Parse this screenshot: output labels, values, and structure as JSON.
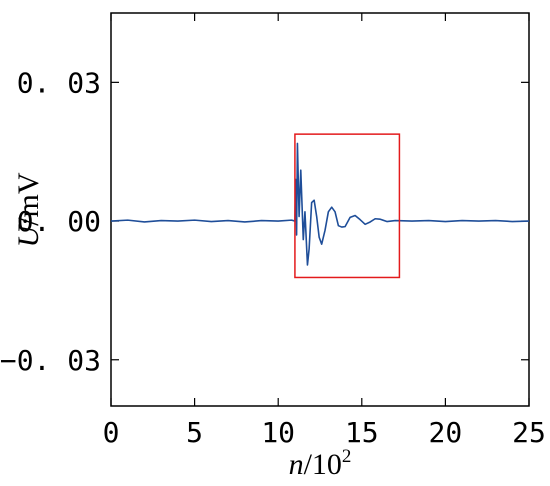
{
  "chart_data": {
    "type": "line",
    "title": "",
    "xlabel": {
      "var": "n",
      "rest": "/10",
      "sup": "2"
    },
    "ylabel": {
      "var": "U",
      "rest": "/mV"
    },
    "xlim": [
      0,
      25
    ],
    "ylim": [
      -0.04,
      0.045
    ],
    "xticks": [
      0,
      5,
      10,
      15,
      20,
      25
    ],
    "xtick_labels": [
      "0",
      "5",
      "10",
      "15",
      "20",
      "25"
    ],
    "yticks": [
      -0.03,
      0.0,
      0.03
    ],
    "ytick_labels": [
      "−0. 03",
      "0. 00",
      "0. 03"
    ],
    "grid": false,
    "legend": "none",
    "series": [
      {
        "color": "#1f4e99",
        "points": [
          [
            0.0,
            0.0
          ],
          [
            1.0,
            0.0002
          ],
          [
            2.0,
            -0.0002
          ],
          [
            3.0,
            0.0001
          ],
          [
            4.0,
            0.0
          ],
          [
            5.0,
            0.0002
          ],
          [
            6.0,
            -0.0001
          ],
          [
            7.0,
            0.0001
          ],
          [
            8.0,
            -0.0002
          ],
          [
            9.0,
            0.0001
          ],
          [
            10.0,
            0.0
          ],
          [
            10.8,
            0.0002
          ],
          [
            11.0,
            0.0
          ],
          [
            11.05,
            0.009
          ],
          [
            11.1,
            -0.003
          ],
          [
            11.15,
            0.0168
          ],
          [
            11.25,
            0.001
          ],
          [
            11.35,
            0.011
          ],
          [
            11.5,
            -0.004
          ],
          [
            11.6,
            0.002
          ],
          [
            11.75,
            -0.0095
          ],
          [
            11.85,
            -0.006
          ],
          [
            12.0,
            0.004
          ],
          [
            12.15,
            0.0045
          ],
          [
            12.3,
            0.001
          ],
          [
            12.45,
            -0.0035
          ],
          [
            12.6,
            -0.005
          ],
          [
            12.8,
            -0.002
          ],
          [
            13.0,
            0.002
          ],
          [
            13.2,
            0.003
          ],
          [
            13.4,
            0.002
          ],
          [
            13.6,
            -0.001
          ],
          [
            13.8,
            -0.0013
          ],
          [
            14.0,
            -0.0012
          ],
          [
            14.3,
            0.0008
          ],
          [
            14.6,
            0.0012
          ],
          [
            14.9,
            0.0003
          ],
          [
            15.2,
            -0.0007
          ],
          [
            15.5,
            -0.0002
          ],
          [
            15.8,
            0.0005
          ],
          [
            16.1,
            0.0004
          ],
          [
            16.5,
            -0.0001
          ],
          [
            17.0,
            0.0001
          ],
          [
            18.0,
            0.0
          ],
          [
            19.0,
            0.0001
          ],
          [
            20.0,
            -0.0001
          ],
          [
            21.0,
            0.0001
          ],
          [
            22.0,
            0.0
          ],
          [
            23.0,
            0.0001
          ],
          [
            24.0,
            -0.0001
          ],
          [
            25.0,
            0.0
          ]
        ]
      }
    ],
    "annotations": [
      {
        "type": "rect",
        "color": "#e31a1c",
        "x_range": [
          11.0,
          17.25
        ],
        "y_range": [
          -0.0122,
          0.0188
        ]
      }
    ]
  }
}
